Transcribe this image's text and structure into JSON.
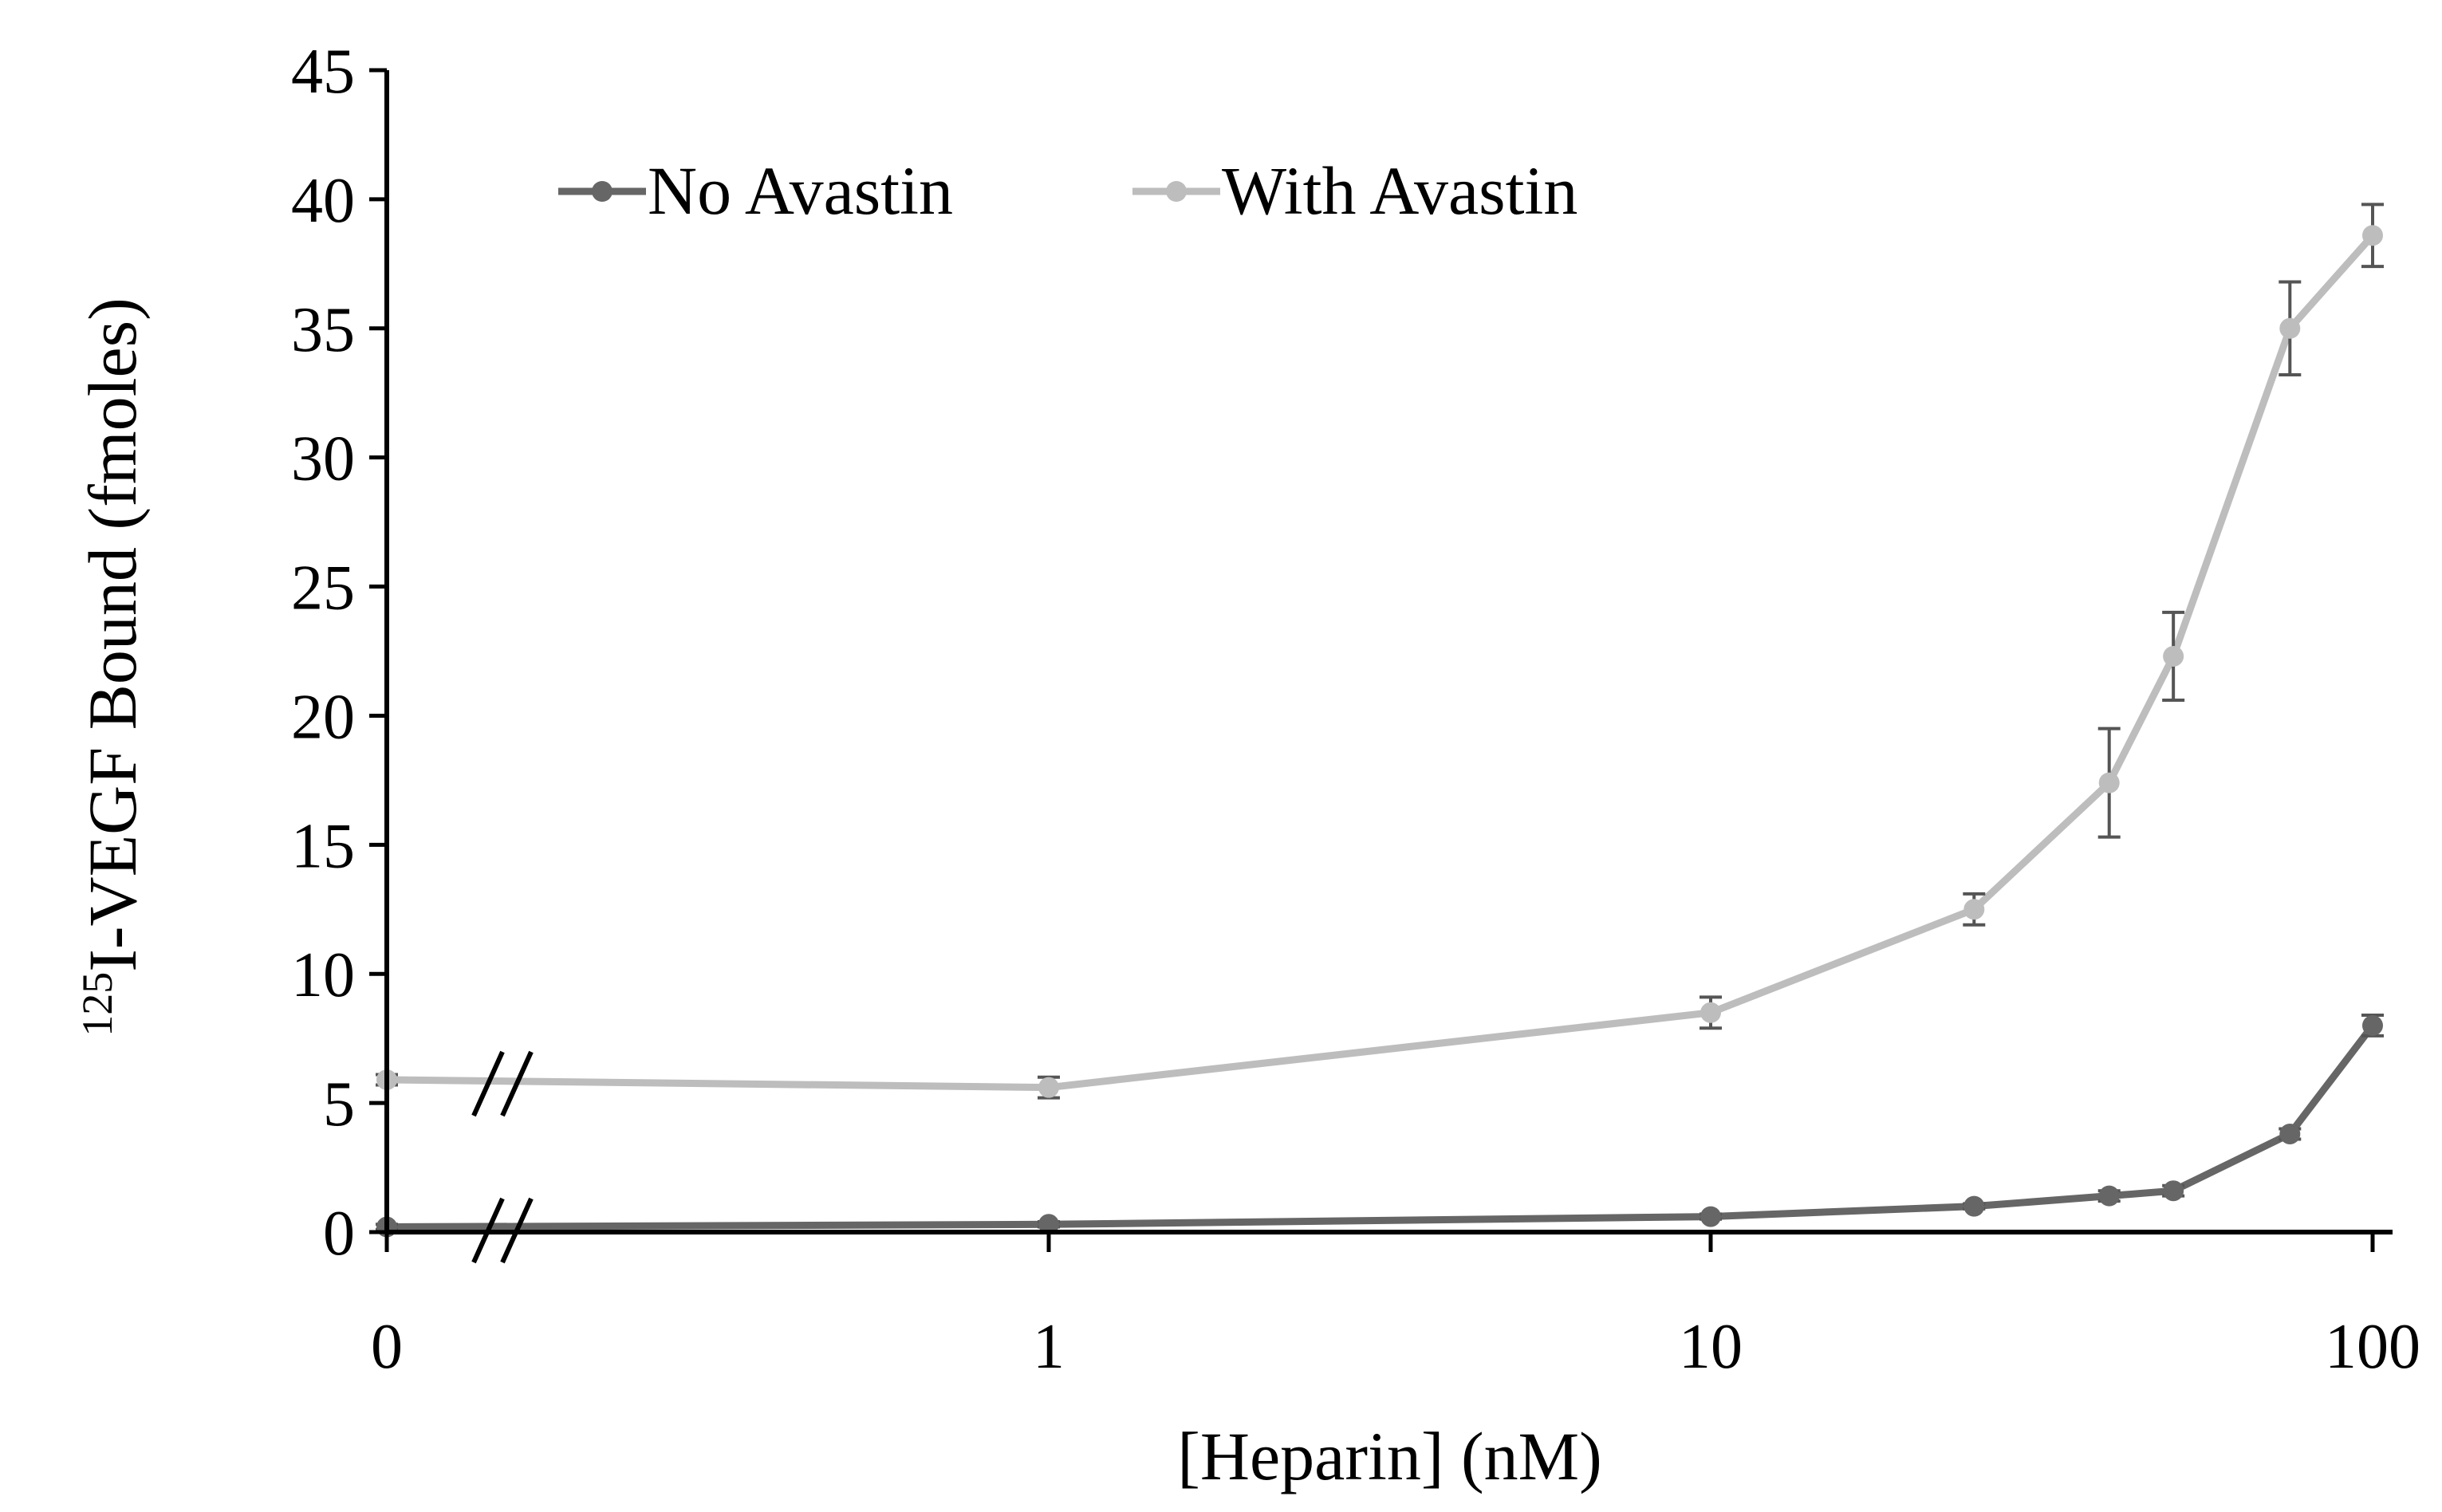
{
  "chart_data": {
    "type": "line",
    "title": "",
    "xlabel": "[Heparin] (nM)",
    "ylabel": "I-VEGF Bound (fmoles)",
    "ylabel_superscript": "125",
    "x_scale": "log",
    "x_axis_break": true,
    "x_ticks": [
      "0",
      "1",
      "10",
      "100"
    ],
    "y_ticks": [
      "0",
      "5",
      "10",
      "15",
      "20",
      "25",
      "30",
      "35",
      "40",
      "45"
    ],
    "ylim": [
      0,
      45
    ],
    "grid": false,
    "legend_position": "top-left",
    "x": [
      0,
      1,
      10,
      25,
      40,
      50,
      75,
      100
    ],
    "series": [
      {
        "name": "No Avastin",
        "color": "#666666",
        "values": [
          0.2,
          0.3,
          0.6,
          1.0,
          1.4,
          1.6,
          3.8,
          8.0
        ],
        "errors": [
          0.1,
          0.1,
          0.1,
          0.1,
          0.2,
          0.2,
          0.2,
          0.4
        ]
      },
      {
        "name": "With Avastin",
        "color": "#bdbdbd",
        "values": [
          5.9,
          5.6,
          8.5,
          12.5,
          17.4,
          22.3,
          35.0,
          38.6
        ],
        "errors": [
          0.2,
          0.4,
          0.6,
          0.6,
          2.1,
          1.7,
          1.8,
          1.2
        ]
      }
    ]
  }
}
